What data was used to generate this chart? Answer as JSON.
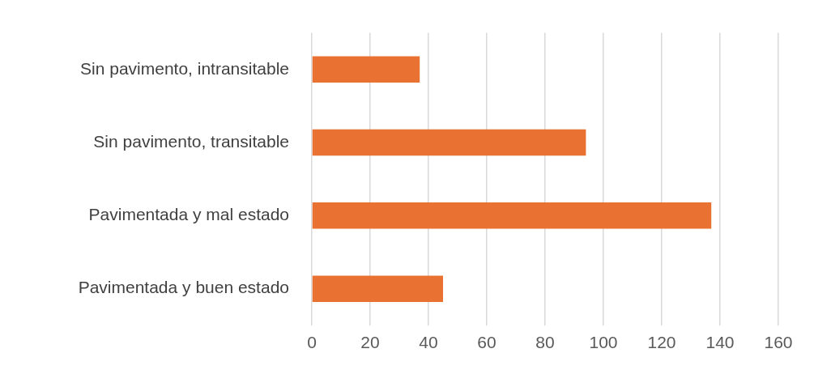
{
  "chart_data": {
    "type": "bar",
    "orientation": "horizontal",
    "categories": [
      "Sin pavimento, intransitable",
      "Sin pavimento, transitable",
      "Pavimentada y mal estado",
      "Pavimentada y buen estado"
    ],
    "values": [
      37,
      94,
      137,
      45
    ],
    "color": "#e97132",
    "xlim": [
      0,
      160
    ],
    "xticks": [
      0,
      20,
      40,
      60,
      80,
      100,
      120,
      140,
      160
    ],
    "grid": "x"
  }
}
